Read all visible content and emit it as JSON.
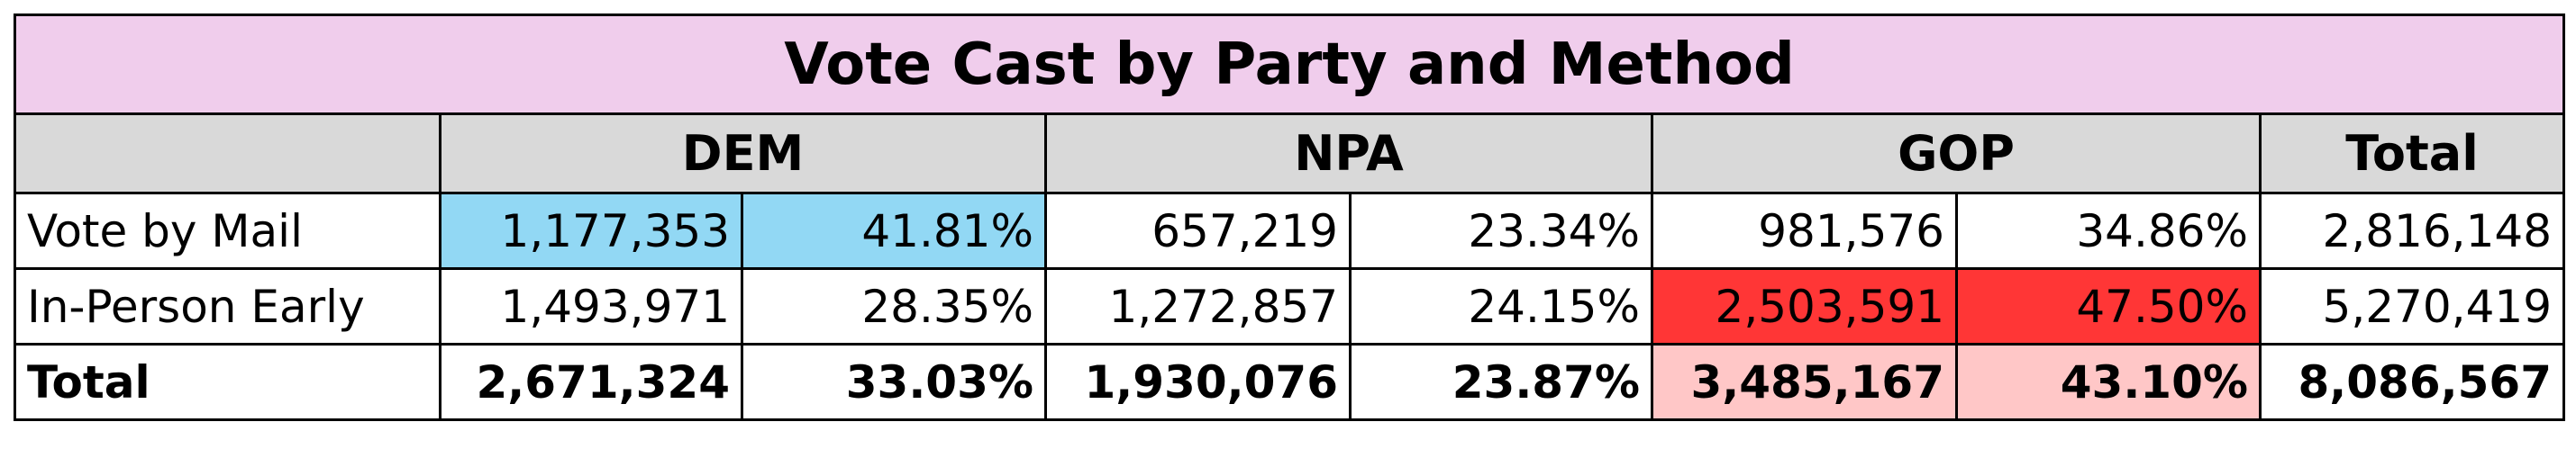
{
  "header": {
    "title": "Vote Cast by Party and Method"
  },
  "table": {
    "columns": [
      "DEM",
      "NPA",
      "GOP",
      "Total"
    ],
    "rows": [
      {
        "label": "Vote by Mail",
        "cells": [
          "1,177,353",
          "41.81%",
          "657,219",
          "23.34%",
          "981,576",
          "34.86%",
          "2,816,148"
        ]
      },
      {
        "label": "In-Person Early",
        "cells": [
          "1,493,971",
          "28.35%",
          "1,272,857",
          "24.15%",
          "2,503,591",
          "47.50%",
          "5,270,419"
        ]
      },
      {
        "label": "Total",
        "cells": [
          "2,671,324",
          "33.03%",
          "1,930,076",
          "23.87%",
          "3,485,167",
          "43.10%",
          "8,086,567"
        ]
      }
    ]
  }
}
